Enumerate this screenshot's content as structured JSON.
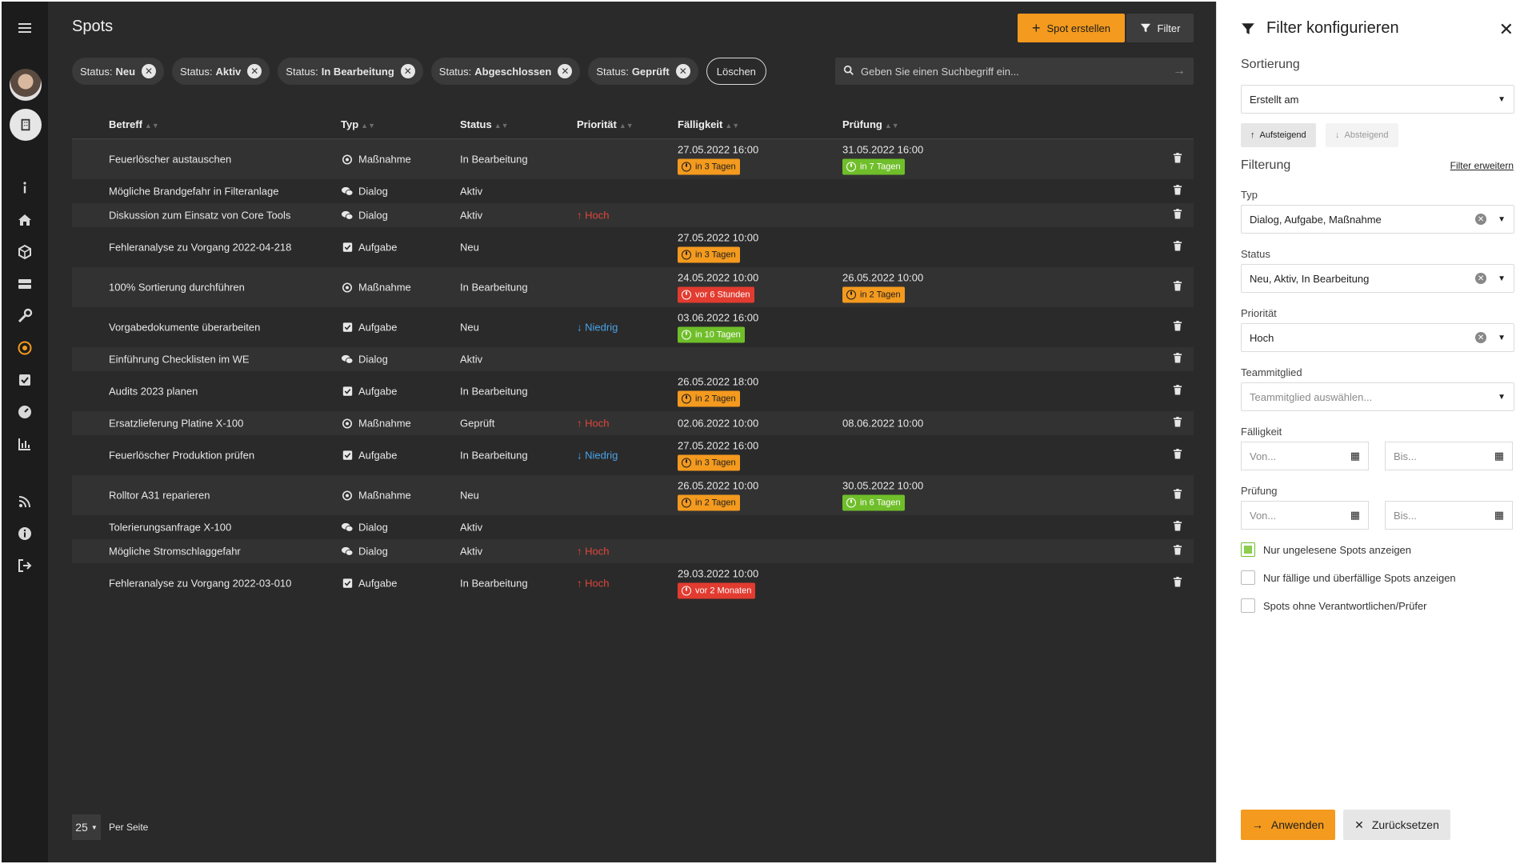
{
  "header": {
    "title": "Spots",
    "create_label": "Spot erstellen",
    "filter_label": "Filter"
  },
  "chips": [
    {
      "prefix": "Status:",
      "value": "Neu"
    },
    {
      "prefix": "Status:",
      "value": "Aktiv"
    },
    {
      "prefix": "Status:",
      "value": "In Bearbeitung"
    },
    {
      "prefix": "Status:",
      "value": "Abgeschlossen"
    },
    {
      "prefix": "Status:",
      "value": "Geprüft"
    }
  ],
  "chips_clear_label": "Löschen",
  "search": {
    "placeholder": "Geben Sie einen Suchbegriff ein..."
  },
  "table": {
    "columns": [
      "Betreff",
      "Typ",
      "Status",
      "Priorität",
      "Fälligkeit",
      "Prüfung"
    ],
    "rows": [
      {
        "subject": "Feuerlöscher austauschen",
        "type": "Maßnahme",
        "type_icon": "target-icon",
        "status": "In Bearbeitung",
        "priority": "",
        "due": "27.05.2022 16:00",
        "due_badge": "in 3 Tagen",
        "due_badge_color": "orange",
        "review": "31.05.2022 16:00",
        "review_badge": "in 7 Tagen",
        "review_badge_color": "green"
      },
      {
        "subject": "Mögliche Brandgefahr in Filteranlage",
        "type": "Dialog",
        "type_icon": "chat-icon",
        "status": "Aktiv",
        "priority": "",
        "due": "",
        "due_badge": "",
        "review": "",
        "review_badge": ""
      },
      {
        "subject": "Diskussion zum Einsatz von Core Tools",
        "type": "Dialog",
        "type_icon": "chat-icon",
        "status": "Aktiv",
        "priority": "Hoch",
        "due": "",
        "due_badge": "",
        "review": "",
        "review_badge": ""
      },
      {
        "subject": "Fehleranalyse zu Vorgang 2022-04-218",
        "type": "Aufgabe",
        "type_icon": "checkbox-icon",
        "status": "Neu",
        "priority": "",
        "due": "27.05.2022 10:00",
        "due_badge": "in 3 Tagen",
        "due_badge_color": "orange",
        "review": "",
        "review_badge": ""
      },
      {
        "subject": "100% Sortierung durchführen",
        "type": "Maßnahme",
        "type_icon": "target-icon",
        "status": "In Bearbeitung",
        "priority": "",
        "due": "24.05.2022 10:00",
        "due_badge": "vor 6 Stunden",
        "due_badge_color": "red",
        "review": "26.05.2022 10:00",
        "review_badge": "in 2 Tagen",
        "review_badge_color": "orange"
      },
      {
        "subject": "Vorgabedokumente überarbeiten",
        "type": "Aufgabe",
        "type_icon": "checkbox-icon",
        "status": "Neu",
        "priority": "Niedrig",
        "due": "03.06.2022 16:00",
        "due_badge": "in 10 Tagen",
        "due_badge_color": "green",
        "review": "",
        "review_badge": ""
      },
      {
        "subject": "Einführung Checklisten im WE",
        "type": "Dialog",
        "type_icon": "chat-icon",
        "status": "Aktiv",
        "priority": "",
        "due": "",
        "due_badge": "",
        "review": "",
        "review_badge": ""
      },
      {
        "subject": "Audits 2023 planen",
        "type": "Aufgabe",
        "type_icon": "checkbox-icon",
        "status": "In Bearbeitung",
        "priority": "",
        "due": "26.05.2022 18:00",
        "due_badge": "in 2 Tagen",
        "due_badge_color": "orange",
        "review": "",
        "review_badge": ""
      },
      {
        "subject": "Ersatzlieferung Platine X-100",
        "type": "Maßnahme",
        "type_icon": "target-icon",
        "status": "Geprüft",
        "priority": "Hoch",
        "due": "02.06.2022 10:00",
        "due_badge": "",
        "review": "08.06.2022 10:00",
        "review_badge": ""
      },
      {
        "subject": "Feuerlöscher Produktion prüfen",
        "type": "Aufgabe",
        "type_icon": "checkbox-icon",
        "status": "In Bearbeitung",
        "priority": "Niedrig",
        "due": "27.05.2022 16:00",
        "due_badge": "in 3 Tagen",
        "due_badge_color": "orange",
        "review": "",
        "review_badge": ""
      },
      {
        "subject": "Rolltor A31 reparieren",
        "type": "Maßnahme",
        "type_icon": "target-icon",
        "status": "Neu",
        "priority": "",
        "due": "26.05.2022 10:00",
        "due_badge": "in 2 Tagen",
        "due_badge_color": "orange",
        "review": "30.05.2022 10:00",
        "review_badge": "in 6 Tagen",
        "review_badge_color": "green"
      },
      {
        "subject": "Tolerierungsanfrage X-100",
        "type": "Dialog",
        "type_icon": "chat-icon",
        "status": "Aktiv",
        "priority": "",
        "due": "",
        "due_badge": "",
        "review": "",
        "review_badge": ""
      },
      {
        "subject": "Mögliche Stromschlaggefahr",
        "type": "Dialog",
        "type_icon": "chat-icon",
        "status": "Aktiv",
        "priority": "Hoch",
        "due": "",
        "due_badge": "",
        "review": "",
        "review_badge": ""
      },
      {
        "subject": "Fehleranalyse zu Vorgang 2022-03-010",
        "type": "Aufgabe",
        "type_icon": "checkbox-icon",
        "status": "In Bearbeitung",
        "priority": "Hoch",
        "due": "29.03.2022 10:00",
        "due_badge": "vor 2 Monaten",
        "due_badge_color": "red",
        "review": "",
        "review_badge": ""
      }
    ]
  },
  "pager": {
    "page_size": "25",
    "label": "Per Seite"
  },
  "colors": {
    "accent": "#f39a1f",
    "danger": "#e23b30",
    "success": "#6fbe2a",
    "info": "#4aa3e6"
  },
  "panel": {
    "title": "Filter konfigurieren",
    "sort_section": "Sortierung",
    "sort_field": "Erstellt am",
    "sort_asc": "Aufsteigend",
    "sort_desc": "Absteigend",
    "filter_section": "Filterung",
    "filter_extend": "Filter erweitern",
    "type_label": "Typ",
    "type_value": "Dialog, Aufgabe, Maßnahme",
    "status_label": "Status",
    "status_value": "Neu, Aktiv, In Bearbeitung",
    "priority_label": "Priorität",
    "priority_value": "Hoch",
    "member_label": "Teammitglied",
    "member_placeholder": "Teammitglied auswählen...",
    "due_label": "Fälligkeit",
    "review_label": "Prüfung",
    "from_placeholder": "Von...",
    "to_placeholder": "Bis...",
    "cb_unread": "Nur ungelesene Spots anzeigen",
    "cb_due": "Nur fällige und überfällige Spots anzeigen",
    "cb_noowner": "Spots ohne Verantwortlichen/Prüfer",
    "apply_label": "Anwenden",
    "reset_label": "Zurücksetzen"
  }
}
